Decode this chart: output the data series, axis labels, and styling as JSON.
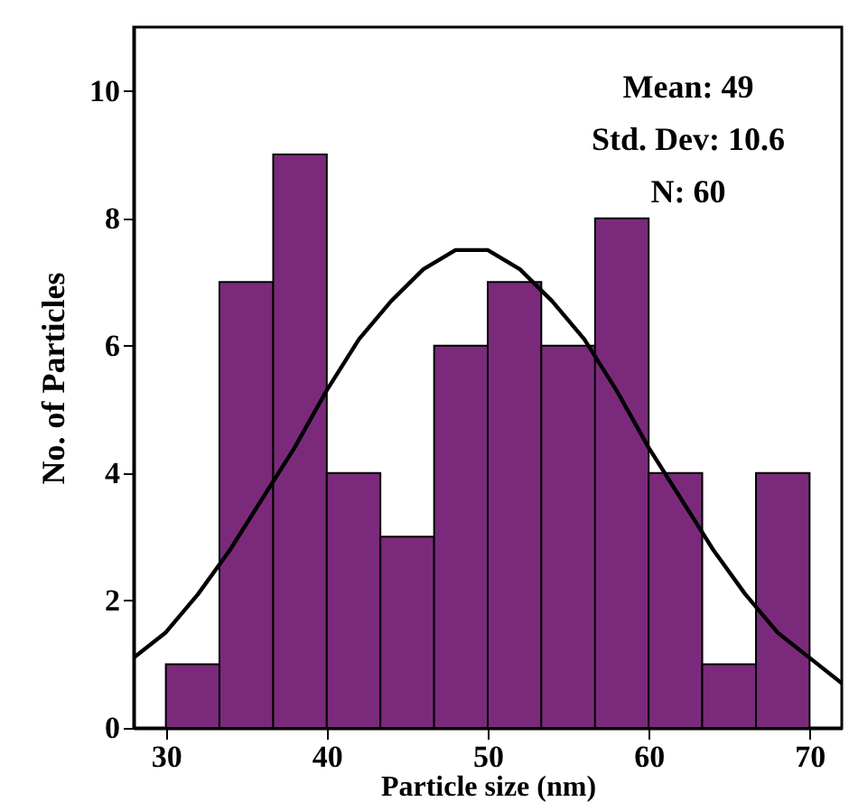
{
  "chart_data": {
    "type": "histogram",
    "xlabel": "Particle size (nm)",
    "ylabel": "No. of Particles",
    "bins": [
      30,
      33.33,
      36.67,
      40,
      43.33,
      46.67,
      50,
      53.33,
      56.67,
      60,
      63.33,
      66.67,
      70
    ],
    "values": [
      1,
      7,
      9,
      4,
      3,
      6,
      7,
      6,
      8,
      4,
      1,
      4
    ],
    "color": "#7b2a7b",
    "series": [
      {
        "type": "line",
        "color": "#000000",
        "x": [
          28,
          30,
          32,
          34,
          36,
          38,
          40,
          42,
          44,
          46,
          48,
          49,
          50,
          52,
          54,
          56,
          58,
          60,
          62,
          64,
          66,
          68,
          70,
          72
        ],
        "values": [
          1.1,
          1.5,
          2.1,
          2.8,
          3.6,
          4.4,
          5.3,
          6.1,
          6.7,
          7.2,
          7.5,
          7.5,
          7.5,
          7.2,
          6.7,
          6.1,
          5.3,
          4.4,
          3.6,
          2.8,
          2.1,
          1.5,
          1.1,
          0.7
        ]
      }
    ],
    "xlim": [
      28,
      72
    ],
    "xticks": [
      30,
      40,
      50,
      60,
      70
    ],
    "ylim": [
      0,
      11
    ],
    "yticks": [
      0,
      2,
      4,
      6,
      8,
      10
    ],
    "grid": false,
    "annotations": [
      "Mean: 49",
      "Std. Dev: 10.6",
      "N: 60"
    ]
  }
}
